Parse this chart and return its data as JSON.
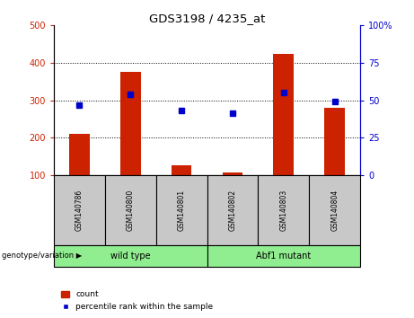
{
  "title": "GDS3198 / 4235_at",
  "samples": [
    "GSM140786",
    "GSM140800",
    "GSM140801",
    "GSM140802",
    "GSM140803",
    "GSM140804"
  ],
  "counts": [
    210,
    375,
    125,
    107,
    425,
    280
  ],
  "count_base": 100,
  "percentile_ranks": [
    47,
    54,
    43,
    41,
    55,
    49
  ],
  "groups": [
    {
      "label": "wild type",
      "start": 0,
      "end": 2,
      "color": "#90ee90"
    },
    {
      "label": "Abf1 mutant",
      "start": 3,
      "end": 5,
      "color": "#90ee90"
    }
  ],
  "ylim_left": [
    100,
    500
  ],
  "yticks_left": [
    100,
    200,
    300,
    400,
    500
  ],
  "ylim_right": [
    0,
    100
  ],
  "yticks_right": [
    0,
    25,
    50,
    75,
    100
  ],
  "bar_color": "#cc2200",
  "dot_color": "#0000cc",
  "bar_width": 0.4,
  "legend_count_label": "count",
  "legend_pct_label": "percentile rank within the sample",
  "cell_bg": "#c8c8c8",
  "group_bg": "#90ee90",
  "grid_color": "black",
  "grid_linestyle": "dotted",
  "right_axis_pct_label": "100%"
}
